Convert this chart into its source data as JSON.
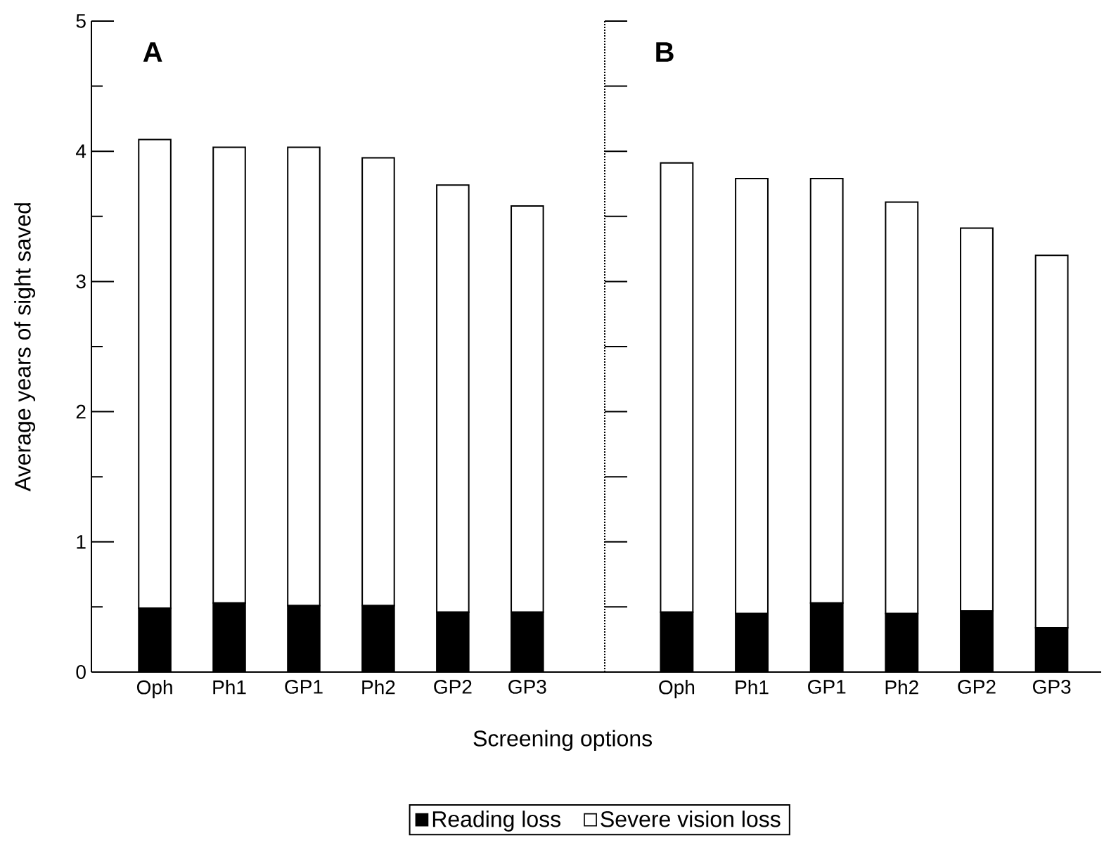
{
  "chart_data": [
    {
      "type": "bar",
      "stacked": true,
      "categories": [
        "Oph",
        "Ph1",
        "GP1",
        "Ph2",
        "GP2",
        "GP3"
      ],
      "xlabel": "Screening options",
      "ylabel": "Average years of sight saved",
      "ylim": [
        0,
        5
      ],
      "yticks": [
        0,
        {
          "value": 0.5,
          "label": null
        },
        1,
        {
          "value": 1.5,
          "label": null
        },
        2,
        {
          "value": 2.5,
          "label": null
        },
        3,
        {
          "value": 3.5,
          "label": null
        },
        4,
        {
          "value": 4.5,
          "label": null
        },
        5
      ],
      "legend": "bottom",
      "annotations": [
        "A"
      ],
      "series": [
        {
          "name": "Reading loss",
          "color": "#000000",
          "values": [
            0.49,
            0.53,
            0.51,
            0.51,
            0.46,
            0.46
          ]
        },
        {
          "name": "Severe vision loss",
          "color": "#ffffff",
          "values": [
            3.6,
            3.5,
            3.52,
            3.44,
            3.28,
            3.12
          ]
        }
      ]
    },
    {
      "type": "bar",
      "stacked": true,
      "categories": [
        "Oph",
        "Ph1",
        "GP1",
        "Ph2",
        "GP2",
        "GP3"
      ],
      "ylim": [
        0,
        5
      ],
      "tick_labels": "x",
      "annotations": [
        "B"
      ],
      "series": [
        {
          "color": "#000000",
          "values": [
            0.46,
            0.45,
            0.53,
            0.45,
            0.47,
            0.34
          ]
        },
        {
          "color": "#ffffff",
          "values": [
            3.45,
            3.34,
            3.26,
            3.16,
            2.94,
            2.86
          ]
        }
      ]
    }
  ]
}
